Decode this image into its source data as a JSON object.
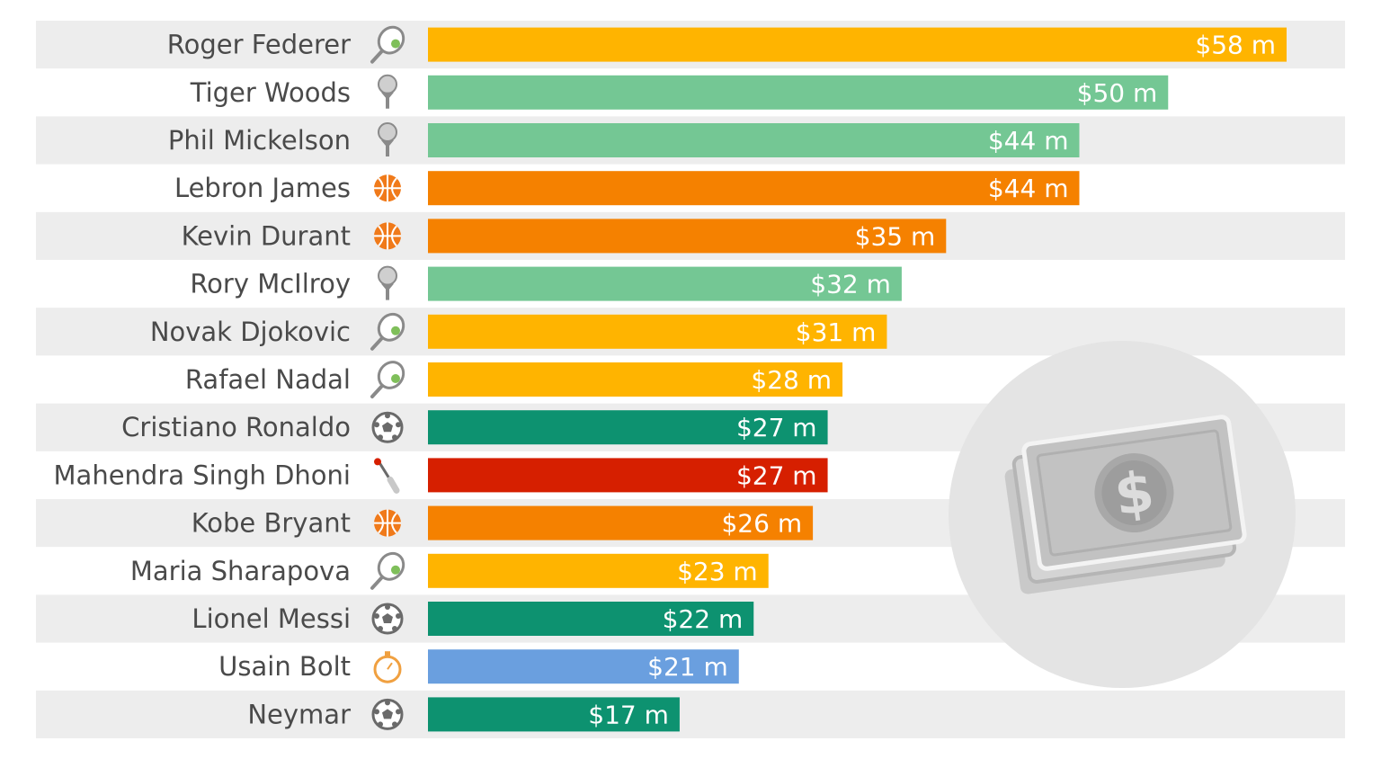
{
  "chart_data": {
    "type": "bar",
    "orientation": "horizontal",
    "categories": [
      "Roger Federer",
      "Tiger Woods",
      "Phil Mickelson",
      "Lebron James",
      "Kevin Durant",
      "Rory McIlroy",
      "Novak Djokovic",
      "Rafael Nadal",
      "Cristiano Ronaldo",
      "Mahendra Singh Dhoni",
      "Kobe Bryant",
      "Maria Sharapova",
      "Lionel Messi",
      "Usain Bolt",
      "Neymar"
    ],
    "values": [
      58,
      50,
      44,
      44,
      35,
      32,
      31,
      28,
      27,
      27,
      26,
      23,
      22,
      21,
      17
    ],
    "value_labels": [
      "$58 m",
      "$50 m",
      "$44 m",
      "$44 m",
      "$35 m",
      "$32 m",
      "$31 m",
      "$28 m",
      "$27 m",
      "$27 m",
      "$26 m",
      "$23 m",
      "$22 m",
      "$21 m",
      "$17 m"
    ],
    "sports": [
      "tennis",
      "golf",
      "golf",
      "basketball",
      "basketball",
      "golf",
      "tennis",
      "tennis",
      "football",
      "cricket",
      "basketball",
      "tennis",
      "football",
      "athletics",
      "football"
    ],
    "sport_colors": {
      "tennis": "#ffb400",
      "golf": "#74c794",
      "basketball": "#f58100",
      "football": "#0d9270",
      "cricket": "#d61f00",
      "athletics": "#6a9fdf"
    },
    "icons": {
      "tennis": "tennis-racket-icon",
      "golf": "golf-ball-on-tee-icon",
      "basketball": "basketball-icon",
      "football": "soccer-ball-icon",
      "cricket": "cricket-bat-icon",
      "athletics": "stopwatch-icon"
    },
    "xlim": [
      0,
      58
    ],
    "stripe_color": "#ededed",
    "decoration": "money-bills-icon"
  }
}
